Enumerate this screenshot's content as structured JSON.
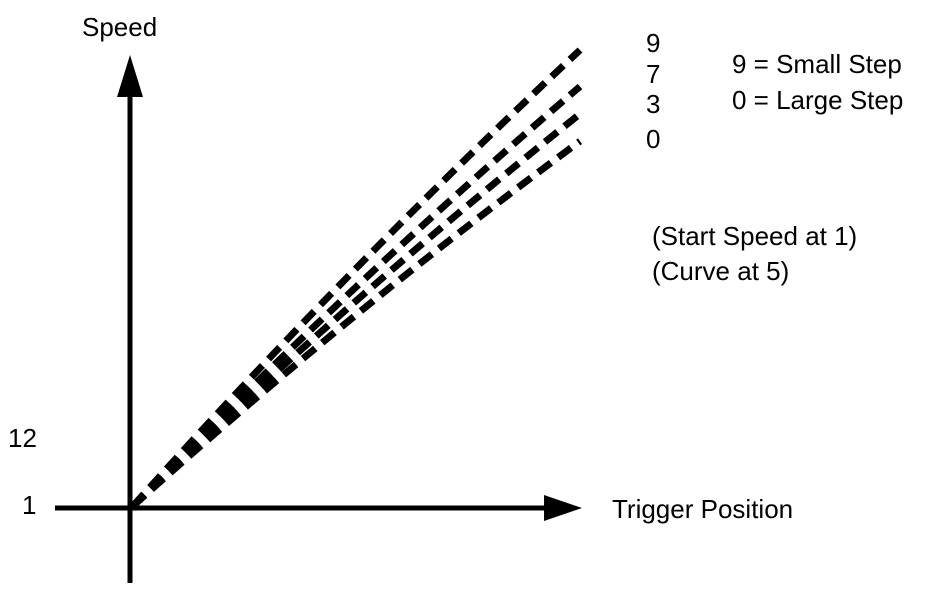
{
  "chart_data": {
    "type": "line",
    "title": "",
    "xlabel": "Trigger Position",
    "ylabel": "Speed",
    "y_tick_labels": [
      "1",
      "12"
    ],
    "series": [
      {
        "name": "9",
        "points": [
          [
            0,
            0
          ],
          [
            1,
            1
          ]
        ]
      },
      {
        "name": "7",
        "points": [
          [
            0,
            0
          ],
          [
            1,
            0.92
          ]
        ]
      },
      {
        "name": "3",
        "points": [
          [
            0,
            0
          ],
          [
            1,
            0.86
          ]
        ]
      },
      {
        "name": "0",
        "points": [
          [
            0,
            0
          ],
          [
            1,
            0.8
          ]
        ]
      }
    ],
    "legend": {
      "entries": [
        "9 = Small Step",
        "0 = Large Step"
      ]
    },
    "annotations": [
      "(Start Speed at 1)",
      "(Curve at 5)"
    ],
    "grid": false,
    "colors": {
      "axis": "#000000",
      "series": "#000000",
      "background": "#ffffff"
    }
  }
}
